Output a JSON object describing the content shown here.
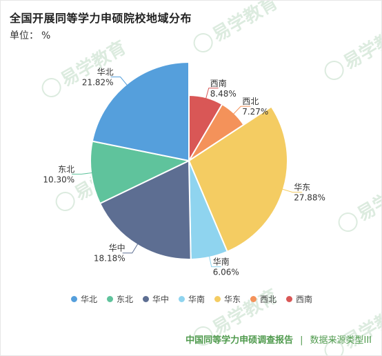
{
  "title": "全国开展同等学力申硕院校地域分布",
  "unit_label": "单位：",
  "unit_symbol": "%",
  "footer": {
    "report": "中国同等学力申硕调查报告",
    "separator": "|",
    "source": "数据来源类型III"
  },
  "watermark_text": "易学教育",
  "chart_data": {
    "type": "pie",
    "title": "全国开展同等学力申硕院校地域分布",
    "unit": "%",
    "legend_position": "bottom",
    "slices": [
      {
        "label": "西南",
        "value": 8.48,
        "value_text": "8.48%",
        "color": "#d95756"
      },
      {
        "label": "西北",
        "value": 7.27,
        "value_text": "7.27%",
        "color": "#f4925a"
      },
      {
        "label": "华东",
        "value": 27.88,
        "value_text": "27.88%",
        "color": "#f4cc62"
      },
      {
        "label": "华南",
        "value": 6.06,
        "value_text": "6.06%",
        "color": "#8fd4ef"
      },
      {
        "label": "华中",
        "value": 18.18,
        "value_text": "18.18%",
        "color": "#5d6e92"
      },
      {
        "label": "东北",
        "value": 10.3,
        "value_text": "10.30%",
        "color": "#5fc39c"
      },
      {
        "label": "华北",
        "value": 21.82,
        "value_text": "21.82%",
        "color": "#559fdc"
      }
    ],
    "legend_order": [
      "华北",
      "东北",
      "华中",
      "华南",
      "华东",
      "西北",
      "西南"
    ]
  }
}
